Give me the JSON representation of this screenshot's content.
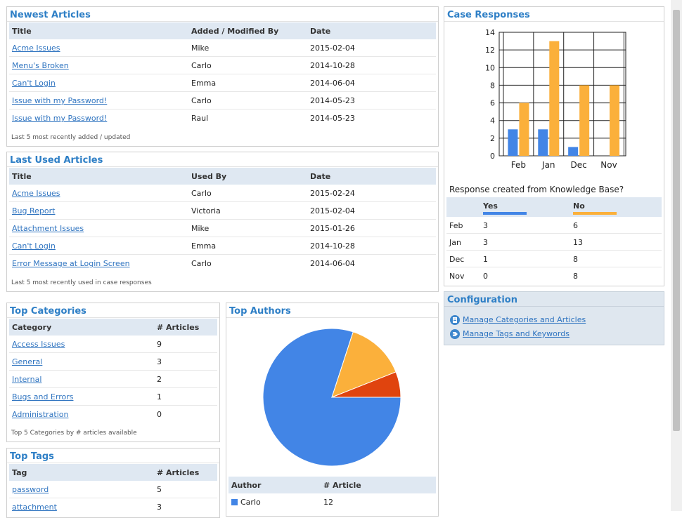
{
  "newest": {
    "title": "Newest Articles",
    "headers": [
      "Title",
      "Added / Modified By",
      "Date"
    ],
    "rows": [
      {
        "title": "Acme Issues",
        "by": "Mike",
        "date": "2015-02-04"
      },
      {
        "title": "Menu's Broken",
        "by": "Carlo",
        "date": "2014-10-28"
      },
      {
        "title": "Can't Login",
        "by": "Emma",
        "date": "2014-06-04"
      },
      {
        "title": "Issue with my Password!",
        "by": "Carlo",
        "date": "2014-05-23"
      },
      {
        "title": "Issue with my Password!",
        "by": "Raul",
        "date": "2014-05-23"
      }
    ],
    "footer": "Last 5 most recently added / updated"
  },
  "lastused": {
    "title": "Last Used Articles",
    "headers": [
      "Title",
      "Used By",
      "Date"
    ],
    "rows": [
      {
        "title": "Acme Issues",
        "by": "Carlo",
        "date": "2015-02-24"
      },
      {
        "title": "Bug Report",
        "by": "Victoria",
        "date": "2015-02-04"
      },
      {
        "title": "Attachment Issues",
        "by": "Mike",
        "date": "2015-01-26"
      },
      {
        "title": "Can't Login",
        "by": "Emma",
        "date": "2014-10-28"
      },
      {
        "title": "Error Message at Login Screen",
        "by": "Carlo",
        "date": "2014-06-04"
      }
    ],
    "footer": "Last 5 most recently used in case responses"
  },
  "categories": {
    "title": "Top Categories",
    "headers": [
      "Category",
      "# Articles"
    ],
    "rows": [
      {
        "name": "Access Issues",
        "count": "9"
      },
      {
        "name": "General",
        "count": "3"
      },
      {
        "name": "Internal",
        "count": "2"
      },
      {
        "name": "Bugs and Errors",
        "count": "1"
      },
      {
        "name": "Administration",
        "count": "0"
      }
    ],
    "footer": "Top 5 Categories by # articles available"
  },
  "tags": {
    "title": "Top Tags",
    "headers": [
      "Tag",
      "# Articles"
    ],
    "rows": [
      {
        "name": "password",
        "count": "5"
      },
      {
        "name": "attachment",
        "count": "3"
      }
    ]
  },
  "authors": {
    "title": "Top Authors",
    "headers": [
      "Author",
      "# Article"
    ],
    "rows": [
      {
        "name": "Carlo",
        "count": "12",
        "color": "#4285e6"
      }
    ]
  },
  "case": {
    "title": "Case Responses",
    "question": "Response created from Knowledge Base?",
    "headers": [
      "Yes",
      "No"
    ],
    "rows": [
      {
        "month": "Feb",
        "yes": "3",
        "no": "6"
      },
      {
        "month": "Jan",
        "yes": "3",
        "no": "13"
      },
      {
        "month": "Dec",
        "yes": "1",
        "no": "8"
      },
      {
        "month": "Nov",
        "yes": "0",
        "no": "8"
      }
    ]
  },
  "config": {
    "title": "Configuration",
    "links": [
      "Manage Categories and Articles",
      "Manage Tags and Keywords"
    ]
  },
  "colors": {
    "yes": "#4285e6",
    "no": "#fbb03b",
    "pie_third": "#e0440e"
  },
  "chart_data": [
    {
      "type": "bar",
      "title": "",
      "categories": [
        "Feb",
        "Jan",
        "Dec",
        "Nov"
      ],
      "series": [
        {
          "name": "Yes",
          "values": [
            3,
            3,
            1,
            0
          ]
        },
        {
          "name": "No",
          "values": [
            6,
            13,
            8,
            8
          ]
        }
      ],
      "ylim": [
        0,
        14
      ],
      "yticks": [
        0,
        2,
        4,
        6,
        8,
        10,
        12,
        14
      ],
      "grid": true
    },
    {
      "type": "pie",
      "title": "",
      "labels": [
        "Carlo",
        "",
        ""
      ],
      "values": [
        80,
        14,
        6
      ]
    }
  ]
}
